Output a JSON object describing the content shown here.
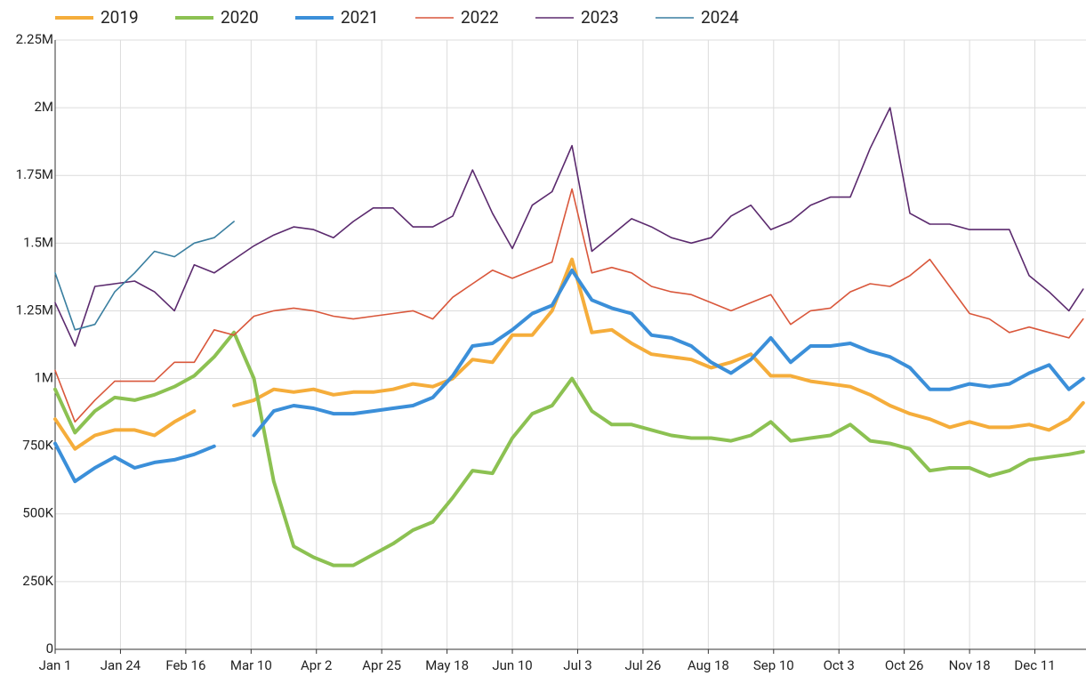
{
  "chart_data": {
    "type": "line",
    "x": [
      0,
      7,
      14,
      21,
      28,
      35,
      42,
      49,
      56,
      63,
      70,
      77,
      84,
      91,
      98,
      105,
      112,
      119,
      126,
      133,
      140,
      147,
      154,
      161,
      168,
      175,
      182,
      189,
      196,
      203,
      210,
      217,
      224,
      231,
      238,
      245,
      252,
      259,
      266,
      273,
      280,
      287,
      294,
      301,
      308,
      315,
      322,
      329,
      336,
      343,
      350,
      357,
      362
    ],
    "xlim": [
      0,
      363
    ],
    "xticks": [
      {
        "value": 0,
        "label": "Jan 1"
      },
      {
        "value": 23,
        "label": "Jan 24"
      },
      {
        "value": 46,
        "label": "Feb 16"
      },
      {
        "value": 69,
        "label": "Mar 10"
      },
      {
        "value": 92,
        "label": "Apr 2"
      },
      {
        "value": 115,
        "label": "Apr 25"
      },
      {
        "value": 138,
        "label": "May 18"
      },
      {
        "value": 161,
        "label": "Jun 10"
      },
      {
        "value": 184,
        "label": "Jul 3"
      },
      {
        "value": 207,
        "label": "Jul 26"
      },
      {
        "value": 230,
        "label": "Aug 18"
      },
      {
        "value": 253,
        "label": "Sep 10"
      },
      {
        "value": 276,
        "label": "Oct 3"
      },
      {
        "value": 299,
        "label": "Oct 26"
      },
      {
        "value": 322,
        "label": "Nov 18"
      },
      {
        "value": 345,
        "label": "Dec 11"
      }
    ],
    "ylim": [
      0,
      2250000
    ],
    "yticks": [
      0,
      {
        "value": 250000,
        "label": "250K"
      },
      {
        "value": 500000,
        "label": "500K"
      },
      {
        "value": 750000,
        "label": "750K"
      },
      {
        "value": 1000000,
        "label": "1M"
      },
      {
        "value": 1250000,
        "label": "1.25M"
      },
      {
        "value": 1500000,
        "label": "1.5M"
      },
      {
        "value": 1750000,
        "label": "1.75M"
      },
      {
        "value": 2000000,
        "label": "2M"
      },
      {
        "value": 2250000,
        "label": "2.25M"
      }
    ],
    "grid": true,
    "series": [
      {
        "name": "2019",
        "color": "#f5ad3b",
        "line_width": 4,
        "values": [
          850000,
          740000,
          790000,
          810000,
          810000,
          790000,
          840000,
          880000,
          null,
          900000,
          920000,
          960000,
          950000,
          960000,
          940000,
          950000,
          950000,
          960000,
          980000,
          970000,
          1000000,
          1070000,
          1060000,
          1160000,
          1160000,
          1250000,
          1440000,
          1170000,
          1180000,
          1130000,
          1090000,
          1080000,
          1070000,
          1040000,
          1060000,
          1090000,
          1010000,
          1010000,
          990000,
          980000,
          970000,
          940000,
          900000,
          870000,
          850000,
          820000,
          840000,
          820000,
          820000,
          830000,
          810000,
          850000,
          910000
        ]
      },
      {
        "name": "2020",
        "color": "#8cc152",
        "line_width": 4,
        "values": [
          960000,
          800000,
          880000,
          930000,
          920000,
          940000,
          970000,
          1010000,
          1080000,
          1170000,
          1000000,
          620000,
          380000,
          340000,
          310000,
          310000,
          350000,
          390000,
          440000,
          470000,
          560000,
          660000,
          650000,
          780000,
          870000,
          900000,
          1000000,
          880000,
          830000,
          830000,
          810000,
          790000,
          780000,
          780000,
          770000,
          790000,
          840000,
          770000,
          780000,
          790000,
          830000,
          770000,
          760000,
          740000,
          660000,
          670000,
          670000,
          640000,
          660000,
          700000,
          710000,
          720000,
          730000
        ]
      },
      {
        "name": "2021",
        "color": "#3b8fd9",
        "line_width": 4,
        "values": [
          760000,
          620000,
          670000,
          710000,
          670000,
          690000,
          700000,
          720000,
          750000,
          null,
          790000,
          880000,
          900000,
          890000,
          870000,
          870000,
          880000,
          890000,
          900000,
          930000,
          1010000,
          1120000,
          1130000,
          1180000,
          1240000,
          1270000,
          1400000,
          1290000,
          1260000,
          1240000,
          1160000,
          1150000,
          1120000,
          1060000,
          1020000,
          1070000,
          1150000,
          1060000,
          1120000,
          1120000,
          1130000,
          1100000,
          1080000,
          1040000,
          960000,
          960000,
          980000,
          970000,
          980000,
          1020000,
          1050000,
          960000,
          1000000
        ]
      },
      {
        "name": "2022",
        "color": "#d9573b",
        "line_width": 1.6,
        "values": [
          1030000,
          840000,
          920000,
          990000,
          990000,
          990000,
          1060000,
          1060000,
          1180000,
          1160000,
          1230000,
          1250000,
          1260000,
          1250000,
          1230000,
          1220000,
          1230000,
          1240000,
          1250000,
          1220000,
          1300000,
          1350000,
          1400000,
          1370000,
          1400000,
          1430000,
          1700000,
          1390000,
          1410000,
          1390000,
          1340000,
          1320000,
          1310000,
          1280000,
          1250000,
          1280000,
          1310000,
          1200000,
          1250000,
          1260000,
          1320000,
          1350000,
          1340000,
          1380000,
          1440000,
          1340000,
          1240000,
          1220000,
          1170000,
          1190000,
          1170000,
          1150000,
          1220000
        ]
      },
      {
        "name": "2023",
        "color": "#5b2a6e",
        "line_width": 1.6,
        "values": [
          1280000,
          1120000,
          1340000,
          1350000,
          1360000,
          1320000,
          1250000,
          1420000,
          1390000,
          1440000,
          1490000,
          1530000,
          1560000,
          1550000,
          1520000,
          1580000,
          1630000,
          1630000,
          1560000,
          1560000,
          1600000,
          1770000,
          1610000,
          1480000,
          1640000,
          1690000,
          1860000,
          1470000,
          1530000,
          1590000,
          1560000,
          1520000,
          1500000,
          1520000,
          1600000,
          1640000,
          1550000,
          1580000,
          1640000,
          1670000,
          1670000,
          1850000,
          2000000,
          1610000,
          1570000,
          1570000,
          1550000,
          1550000,
          1550000,
          1380000,
          1320000,
          1250000,
          1330000
        ]
      },
      {
        "name": "2024",
        "color": "#3a7fa0",
        "line_width": 1.6,
        "values": [
          1390000,
          1180000,
          1200000,
          1320000,
          1390000,
          1470000,
          1450000,
          1500000,
          1520000,
          1580000,
          null,
          null,
          null,
          null,
          null,
          null,
          null,
          null,
          null,
          null,
          null,
          null,
          null,
          null,
          null,
          null,
          null,
          null,
          null,
          null,
          null,
          null,
          null,
          null,
          null,
          null,
          null,
          null,
          null,
          null,
          null,
          null,
          null,
          null,
          null,
          null,
          null,
          null,
          null,
          null,
          null,
          null,
          null
        ]
      }
    ]
  }
}
